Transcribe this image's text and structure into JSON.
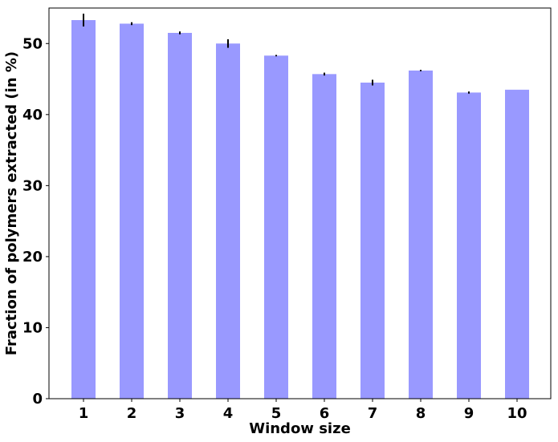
{
  "chart_data": {
    "type": "bar",
    "xlabel": "Window size",
    "ylabel": "Fraction of polymers extracted (in %)",
    "categories": [
      "1",
      "2",
      "3",
      "4",
      "5",
      "6",
      "7",
      "8",
      "9",
      "10"
    ],
    "values": [
      53.3,
      52.8,
      51.5,
      50.0,
      48.3,
      45.7,
      44.5,
      46.2,
      43.1,
      43.5
    ],
    "errors": [
      0.9,
      0.2,
      0.2,
      0.6,
      0.1,
      0.2,
      0.4,
      0.1,
      0.15,
      0.0
    ],
    "ylim": [
      0,
      55
    ],
    "yticks": [
      0,
      10,
      20,
      30,
      40,
      50
    ],
    "grid": false,
    "bar_color": "#9999ff",
    "error_color": "#000000"
  }
}
